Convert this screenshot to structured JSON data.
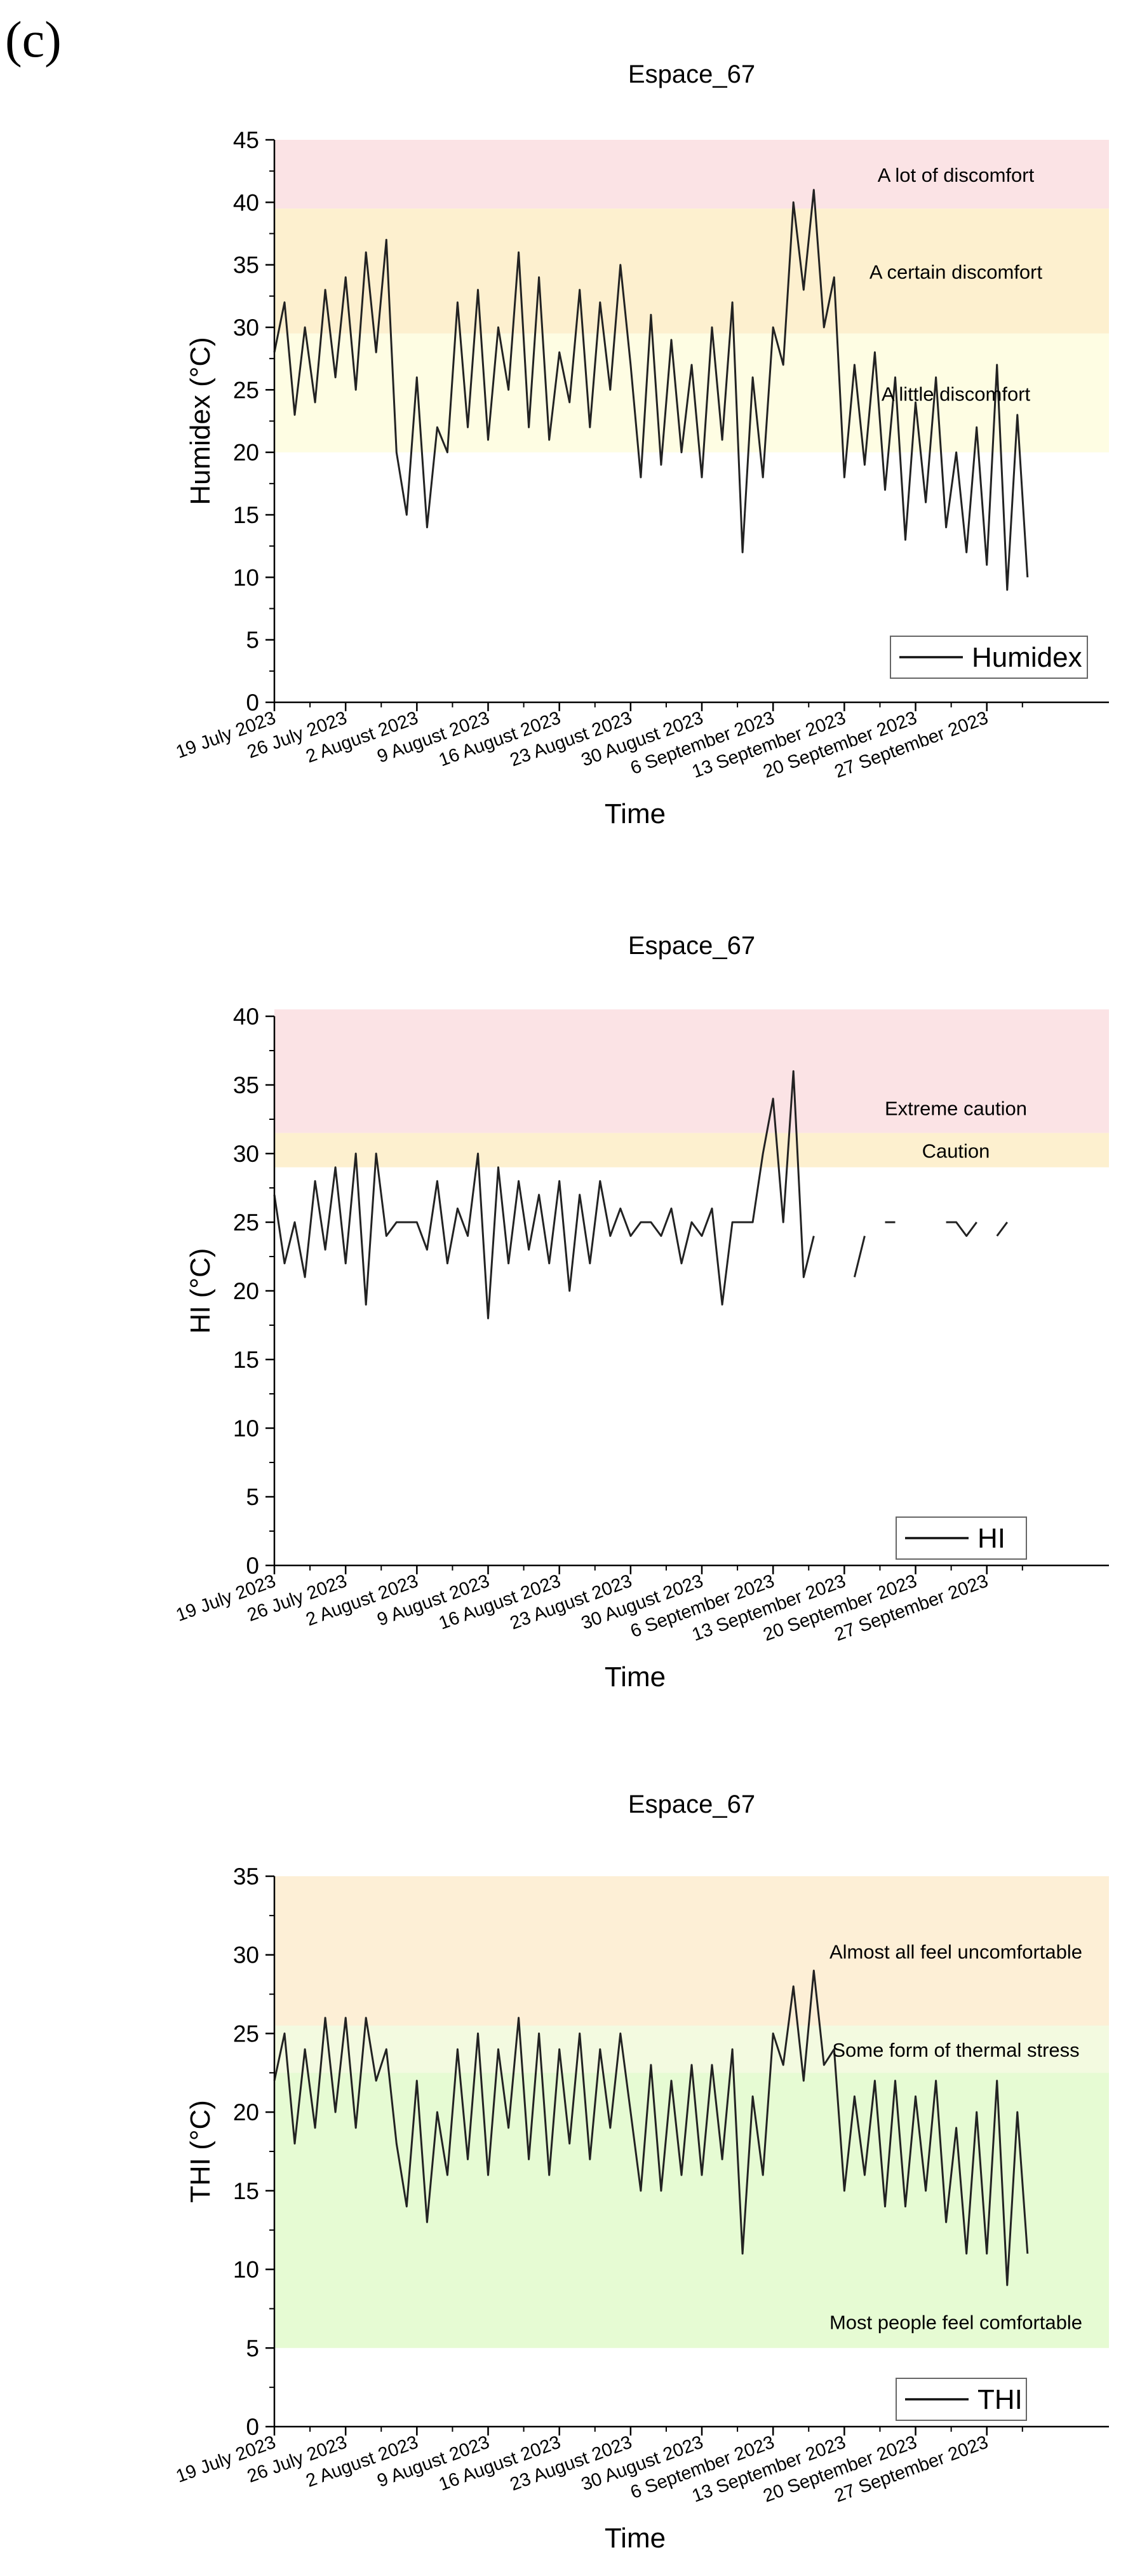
{
  "panel_label": "(c)",
  "chart_data": [
    {
      "type": "line",
      "title": "Espace_67",
      "xlabel": "Time",
      "ylabel": "Humidex (°C)",
      "ylim": [
        0,
        45
      ],
      "yticks": [
        0,
        5,
        10,
        15,
        20,
        25,
        30,
        35,
        40,
        45
      ],
      "xlim": [
        "2023-07-19",
        "2023-10-09"
      ],
      "xticks": [
        "19 July 2023",
        "26 July 2023",
        "2 August 2023",
        "9 August 2023",
        "16 August 2023",
        "23 August 2023",
        "30 August 2023",
        "6 September 2023",
        "13 September 2023",
        "20 September 2023",
        "27 September 2023"
      ],
      "legend": {
        "label": "Humidex",
        "placement": "bottom-right"
      },
      "zones": [
        {
          "label": "A lot of discomfort",
          "from": 39.5,
          "to": 45,
          "color": "#fbe3e5"
        },
        {
          "label": "A certain discomfort",
          "from": 29.5,
          "to": 39.5,
          "color": "#fdf0cf"
        },
        {
          "label": "A little discomfort",
          "from": 20,
          "to": 29.5,
          "color": "#fefde3"
        }
      ],
      "series": [
        {
          "x": [
            "2023-07-19",
            "2023-07-20",
            "2023-07-21",
            "2023-07-22",
            "2023-07-23",
            "2023-07-24",
            "2023-07-25",
            "2023-07-26",
            "2023-07-27",
            "2023-07-28",
            "2023-07-29",
            "2023-07-30",
            "2023-07-31",
            "2023-08-01",
            "2023-08-02",
            "2023-08-03",
            "2023-08-04",
            "2023-08-05",
            "2023-08-06",
            "2023-08-07",
            "2023-08-08",
            "2023-08-09",
            "2023-08-10",
            "2023-08-11",
            "2023-08-12",
            "2023-08-13",
            "2023-08-14",
            "2023-08-15",
            "2023-08-16",
            "2023-08-17",
            "2023-08-18",
            "2023-08-19",
            "2023-08-20",
            "2023-08-21",
            "2023-08-22",
            "2023-08-23",
            "2023-08-24",
            "2023-08-25",
            "2023-08-26",
            "2023-08-27",
            "2023-08-28",
            "2023-08-29",
            "2023-08-30",
            "2023-08-31",
            "2023-09-01",
            "2023-09-02",
            "2023-09-03",
            "2023-09-04",
            "2023-09-05",
            "2023-09-06",
            "2023-09-07",
            "2023-09-08",
            "2023-09-09",
            "2023-09-10",
            "2023-09-11",
            "2023-09-12",
            "2023-09-13",
            "2023-09-14",
            "2023-09-15",
            "2023-09-16",
            "2023-09-17",
            "2023-09-18",
            "2023-09-19",
            "2023-09-20",
            "2023-09-21",
            "2023-09-22",
            "2023-09-23",
            "2023-09-24",
            "2023-09-25",
            "2023-09-26",
            "2023-09-27",
            "2023-09-28",
            "2023-09-29",
            "2023-09-30",
            "2023-10-01"
          ],
          "y": [
            28,
            32,
            23,
            30,
            24,
            33,
            26,
            34,
            25,
            36,
            28,
            37,
            20,
            15,
            26,
            14,
            22,
            20,
            32,
            22,
            33,
            21,
            30,
            25,
            36,
            22,
            34,
            21,
            28,
            24,
            33,
            22,
            32,
            25,
            35,
            27,
            18,
            31,
            19,
            29,
            20,
            27,
            18,
            30,
            21,
            32,
            12,
            26,
            18,
            30,
            27,
            40,
            33,
            41,
            30,
            34,
            18,
            27,
            19,
            28,
            17,
            26,
            13,
            24,
            16,
            26,
            14,
            20,
            12,
            22,
            11,
            27,
            9,
            23,
            10
          ]
        }
      ]
    },
    {
      "type": "line",
      "title": "Espace_67",
      "xlabel": "Time",
      "ylabel": "HI (°C)",
      "ylim": [
        0,
        40
      ],
      "yticks": [
        0,
        5,
        10,
        15,
        20,
        25,
        30,
        35,
        40
      ],
      "xlim": [
        "2023-07-19",
        "2023-10-09"
      ],
      "xticks": [
        "19 July 2023",
        "26 July 2023",
        "2 August 2023",
        "9 August 2023",
        "16 August 2023",
        "23 August 2023",
        "30 August 2023",
        "6 September 2023",
        "13 September 2023",
        "20 September 2023",
        "27 September 2023"
      ],
      "legend": {
        "label": "HI",
        "placement": "bottom-right"
      },
      "zones": [
        {
          "label": "Extreme caution",
          "from": 31.5,
          "to": 40.5,
          "color": "#fbe3e5"
        },
        {
          "label": "Caution",
          "from": 29,
          "to": 31.5,
          "color": "#fdf0cf"
        }
      ],
      "series": [
        {
          "x": [
            "2023-07-19",
            "2023-07-20",
            "2023-07-21",
            "2023-07-22",
            "2023-07-23",
            "2023-07-24",
            "2023-07-25",
            "2023-07-26",
            "2023-07-27",
            "2023-07-28",
            "2023-07-29",
            "2023-07-30",
            "2023-07-31",
            "2023-08-01",
            "2023-08-02",
            "2023-08-03",
            "2023-08-04",
            "2023-08-05",
            "2023-08-06",
            "2023-08-07",
            "2023-08-08",
            "2023-08-09",
            "2023-08-10",
            "2023-08-11",
            "2023-08-12",
            "2023-08-13",
            "2023-08-14",
            "2023-08-15",
            "2023-08-16",
            "2023-08-17",
            "2023-08-18",
            "2023-08-19",
            "2023-08-20",
            "2023-08-21",
            "2023-08-22",
            "2023-08-23",
            "2023-08-24",
            "2023-08-25",
            "2023-08-26",
            "2023-08-27",
            "2023-08-28",
            "2023-08-29",
            "2023-08-30",
            "2023-08-31",
            "2023-09-01",
            "2023-09-02",
            "2023-09-03",
            "2023-09-04",
            "2023-09-05",
            "2023-09-06",
            "2023-09-07",
            "2023-09-08",
            "2023-09-09",
            "2023-09-10",
            "2023-09-11",
            "2023-09-12",
            "2023-09-13",
            "2023-09-14",
            "2023-09-15",
            "2023-09-16",
            "2023-09-17",
            "2023-09-18",
            "2023-09-19",
            "2023-09-20",
            "2023-09-21",
            "2023-09-22",
            "2023-09-23",
            "2023-09-24",
            "2023-09-25",
            "2023-09-26",
            "2023-09-27",
            "2023-09-28",
            "2023-09-29",
            "2023-09-30",
            "2023-10-01"
          ],
          "y": [
            27,
            22,
            25,
            21,
            28,
            23,
            29,
            22,
            30,
            19,
            30,
            24,
            25,
            25,
            25,
            23,
            28,
            22,
            26,
            24,
            30,
            18,
            29,
            22,
            28,
            23,
            27,
            22,
            28,
            20,
            27,
            22,
            28,
            24,
            26,
            24,
            25,
            25,
            24,
            26,
            22,
            25,
            24,
            26,
            19,
            25,
            25,
            25,
            30,
            34,
            25,
            36,
            21,
            24,
            null,
            25,
            null,
            21,
            24,
            null,
            25,
            25,
            null,
            25,
            null,
            null,
            25,
            25,
            24,
            25,
            null,
            24,
            25,
            null,
            25
          ]
        }
      ]
    },
    {
      "type": "line",
      "title": "Espace_67",
      "xlabel": "Time",
      "ylabel": "THI (°C)",
      "ylim": [
        0,
        35
      ],
      "yticks": [
        0,
        5,
        10,
        15,
        20,
        25,
        30,
        35
      ],
      "xlim": [
        "2023-07-19",
        "2023-10-09"
      ],
      "xticks": [
        "19 July 2023",
        "26 July 2023",
        "2 August 2023",
        "9 August 2023",
        "16 August 2023",
        "23 August 2023",
        "30 August 2023",
        "6 September 2023",
        "13 September 2023",
        "20 September 2023",
        "27 September 2023"
      ],
      "legend": {
        "label": "THI",
        "placement": "bottom-right"
      },
      "zones": [
        {
          "label": "Almost all feel uncomfortable",
          "from": 25.5,
          "to": 35,
          "color": "#fdefd6"
        },
        {
          "label": "Some form of thermal stress",
          "from": 22.5,
          "to": 25.5,
          "color": "#f3fae0"
        },
        {
          "label": "Most people feel comfortable",
          "from": 5,
          "to": 22.5,
          "color": "#e6fbd3"
        }
      ],
      "series": [
        {
          "x": [
            "2023-07-19",
            "2023-07-20",
            "2023-07-21",
            "2023-07-22",
            "2023-07-23",
            "2023-07-24",
            "2023-07-25",
            "2023-07-26",
            "2023-07-27",
            "2023-07-28",
            "2023-07-29",
            "2023-07-30",
            "2023-07-31",
            "2023-08-01",
            "2023-08-02",
            "2023-08-03",
            "2023-08-04",
            "2023-08-05",
            "2023-08-06",
            "2023-08-07",
            "2023-08-08",
            "2023-08-09",
            "2023-08-10",
            "2023-08-11",
            "2023-08-12",
            "2023-08-13",
            "2023-08-14",
            "2023-08-15",
            "2023-08-16",
            "2023-08-17",
            "2023-08-18",
            "2023-08-19",
            "2023-08-20",
            "2023-08-21",
            "2023-08-22",
            "2023-08-23",
            "2023-08-24",
            "2023-08-25",
            "2023-08-26",
            "2023-08-27",
            "2023-08-28",
            "2023-08-29",
            "2023-08-30",
            "2023-08-31",
            "2023-09-01",
            "2023-09-02",
            "2023-09-03",
            "2023-09-04",
            "2023-09-05",
            "2023-09-06",
            "2023-09-07",
            "2023-09-08",
            "2023-09-09",
            "2023-09-10",
            "2023-09-11",
            "2023-09-12",
            "2023-09-13",
            "2023-09-14",
            "2023-09-15",
            "2023-09-16",
            "2023-09-17",
            "2023-09-18",
            "2023-09-19",
            "2023-09-20",
            "2023-09-21",
            "2023-09-22",
            "2023-09-23",
            "2023-09-24",
            "2023-09-25",
            "2023-09-26",
            "2023-09-27",
            "2023-09-28",
            "2023-09-29",
            "2023-09-30",
            "2023-10-01"
          ],
          "y": [
            22,
            25,
            18,
            24,
            19,
            26,
            20,
            26,
            19,
            26,
            22,
            24,
            18,
            14,
            22,
            13,
            20,
            16,
            24,
            17,
            25,
            16,
            24,
            19,
            26,
            17,
            25,
            16,
            24,
            18,
            25,
            17,
            24,
            19,
            25,
            20,
            15,
            23,
            15,
            22,
            16,
            23,
            16,
            23,
            17,
            24,
            11,
            21,
            16,
            25,
            23,
            28,
            22,
            29,
            23,
            24,
            15,
            21,
            16,
            22,
            14,
            22,
            14,
            21,
            15,
            22,
            13,
            19,
            11,
            20,
            11,
            22,
            9,
            20,
            11
          ]
        }
      ]
    }
  ]
}
